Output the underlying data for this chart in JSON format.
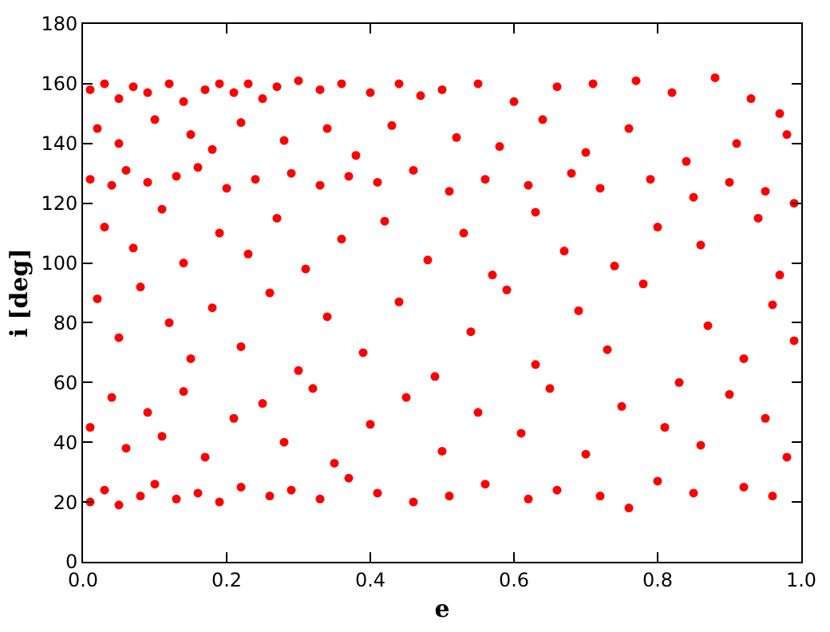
{
  "chart_data": {
    "type": "scatter",
    "xlabel": "e",
    "ylabel": "i [deg]",
    "xlim": [
      0,
      1
    ],
    "xticks": [
      {
        "value": 0,
        "label": "0.0"
      },
      {
        "value": 0.2,
        "label": "0.2"
      },
      {
        "value": 0.4,
        "label": "0.4"
      },
      {
        "value": 0.6,
        "label": "0.6"
      },
      {
        "value": 0.8,
        "label": "0.8"
      },
      {
        "value": 1,
        "label": "1.0"
      }
    ],
    "ylim": [
      0,
      180
    ],
    "yticks": [
      0,
      20,
      40,
      60,
      80,
      100,
      120,
      140,
      160,
      180
    ],
    "marker": "circle",
    "series": [
      {
        "color": "#ff0000",
        "x": [
          0.01,
          0.03,
          0.05,
          0.07,
          0.09,
          0.12,
          0.14,
          0.17,
          0.19,
          0.21,
          0.23,
          0.25,
          0.27,
          0.3,
          0.33,
          0.36,
          0.4,
          0.44,
          0.47,
          0.5,
          0.55,
          0.6,
          0.66,
          0.71,
          0.77,
          0.82,
          0.88,
          0.93,
          0.97,
          0.02,
          0.05,
          0.1,
          0.15,
          0.18,
          0.22,
          0.28,
          0.34,
          0.38,
          0.43,
          0.52,
          0.58,
          0.64,
          0.7,
          0.76,
          0.84,
          0.91,
          0.98,
          0.01,
          0.04,
          0.06,
          0.09,
          0.13,
          0.16,
          0.2,
          0.24,
          0.29,
          0.33,
          0.37,
          0.41,
          0.46,
          0.51,
          0.56,
          0.62,
          0.68,
          0.72,
          0.79,
          0.85,
          0.9,
          0.95,
          0.99,
          0.03,
          0.07,
          0.11,
          0.14,
          0.19,
          0.23,
          0.27,
          0.31,
          0.36,
          0.42,
          0.48,
          0.53,
          0.57,
          0.63,
          0.67,
          0.74,
          0.8,
          0.86,
          0.94,
          0.97,
          0.02,
          0.05,
          0.08,
          0.12,
          0.15,
          0.18,
          0.22,
          0.26,
          0.3,
          0.34,
          0.39,
          0.44,
          0.49,
          0.54,
          0.59,
          0.63,
          0.69,
          0.73,
          0.78,
          0.83,
          0.87,
          0.92,
          0.96,
          0.99,
          0.01,
          0.04,
          0.06,
          0.09,
          0.11,
          0.14,
          0.17,
          0.21,
          0.25,
          0.28,
          0.32,
          0.35,
          0.4,
          0.45,
          0.5,
          0.55,
          0.61,
          0.65,
          0.7,
          0.75,
          0.81,
          0.86,
          0.9,
          0.95,
          0.98,
          0.01,
          0.03,
          0.05,
          0.08,
          0.1,
          0.13,
          0.16,
          0.19,
          0.22,
          0.26,
          0.29,
          0.33,
          0.37,
          0.41,
          0.46,
          0.51,
          0.56,
          0.62,
          0.66,
          0.72,
          0.76,
          0.8,
          0.85,
          0.92,
          0.96
        ],
        "values": [
          158,
          160,
          155,
          159,
          157,
          160,
          154,
          158,
          160,
          157,
          160,
          155,
          159,
          161,
          158,
          160,
          157,
          160,
          156,
          158,
          160,
          154,
          159,
          160,
          161,
          157,
          162,
          155,
          150,
          145,
          140,
          148,
          143,
          138,
          147,
          141,
          145,
          136,
          146,
          142,
          139,
          148,
          137,
          145,
          134,
          140,
          143,
          128,
          126,
          131,
          127,
          129,
          132,
          125,
          128,
          130,
          126,
          129,
          127,
          131,
          124,
          128,
          126,
          130,
          125,
          128,
          122,
          127,
          124,
          120,
          112,
          105,
          118,
          100,
          110,
          103,
          115,
          98,
          108,
          114,
          101,
          110,
          96,
          117,
          104,
          99,
          112,
          106,
          115,
          96,
          88,
          75,
          92,
          80,
          68,
          85,
          72,
          90,
          64,
          82,
          70,
          87,
          62,
          77,
          91,
          66,
          84,
          71,
          93,
          60,
          79,
          68,
          86,
          74,
          45,
          55,
          38,
          50,
          42,
          57,
          35,
          48,
          53,
          40,
          58,
          33,
          46,
          55,
          37,
          50,
          43,
          58,
          36,
          52,
          45,
          39,
          56,
          48,
          35,
          20,
          24,
          19,
          22,
          26,
          21,
          23,
          20,
          25,
          22,
          24,
          21,
          28,
          23,
          20,
          22,
          26,
          21,
          24,
          22,
          18,
          27,
          23,
          25,
          22
        ]
      }
    ]
  }
}
